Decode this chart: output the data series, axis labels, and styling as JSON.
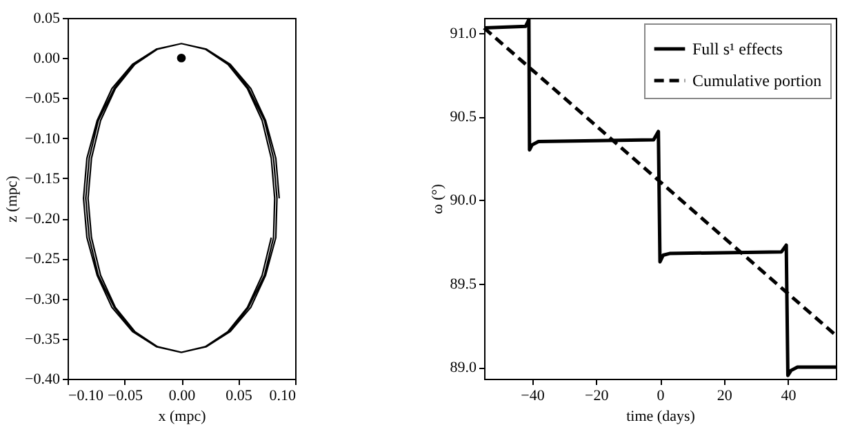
{
  "chart_data": [
    {
      "type": "line",
      "xlabel": "x (mpc)",
      "ylabel": "z (mpc)",
      "xlim": [
        -0.1,
        0.1
      ],
      "ylim": [
        -0.4,
        0.05
      ],
      "xticks": [
        {
          "value": -0.1,
          "label": "−0.10"
        },
        {
          "value": -0.05,
          "label": "−0.05"
        },
        {
          "value": 0,
          "label": "0.00"
        },
        {
          "value": 0.05,
          "label": "0.05"
        },
        {
          "value": 0.1,
          "label": "0.10"
        }
      ],
      "yticks": [
        {
          "value": -0.4,
          "label": "−0.40"
        },
        {
          "value": -0.35,
          "label": "−0.35"
        },
        {
          "value": -0.3,
          "label": "−0.30"
        },
        {
          "value": -0.25,
          "label": "−0.25"
        },
        {
          "value": -0.2,
          "label": "−0.20"
        },
        {
          "value": -0.15,
          "label": "−0.15"
        },
        {
          "value": -0.1,
          "label": "−0.10"
        },
        {
          "value": -0.05,
          "label": "−0.05"
        },
        {
          "value": 0,
          "label": "0.00"
        },
        {
          "value": 0.05,
          "label": "0.05"
        }
      ],
      "grid": false,
      "legend": false,
      "series": [
        {
          "color": "#000000",
          "x": [
            0.086,
            0.083,
            0.074,
            0.061,
            0.043,
            0.022,
            0,
            -0.022,
            -0.043,
            -0.061,
            -0.074,
            -0.083,
            -0.086,
            -0.083,
            -0.074,
            -0.061,
            -0.043,
            -0.022,
            0,
            0.022,
            0.043,
            0.061,
            0.074,
            0.083,
            0.084,
            0.081,
            0.073,
            0.059,
            0.042,
            0.022,
            0,
            -0.022,
            -0.042,
            -0.059,
            -0.073,
            -0.081,
            -0.084,
            -0.081,
            -0.073,
            -0.059,
            -0.042,
            -0.022,
            0,
            0.022,
            0.042,
            0.059,
            0.073,
            0.081,
            0.082,
            0.079,
            0.071,
            0.058,
            0.041,
            0.021,
            0,
            -0.021,
            -0.041,
            -0.058,
            -0.071,
            -0.079,
            -0.082,
            -0.079,
            -0.071,
            -0.058,
            -0.041,
            -0.021,
            0,
            0.021,
            0.041,
            0.058,
            0.071,
            0.079
          ],
          "values": [
            -0.175,
            -0.125,
            -0.078,
            -0.038,
            -0.008,
            0.011,
            0.018,
            0.011,
            -0.008,
            -0.038,
            -0.078,
            -0.125,
            -0.175,
            -0.224,
            -0.271,
            -0.311,
            -0.341,
            -0.36,
            -0.367,
            -0.36,
            -0.341,
            -0.311,
            -0.271,
            -0.224,
            -0.175,
            -0.125,
            -0.078,
            -0.038,
            -0.008,
            0.011,
            0.018,
            0.011,
            -0.008,
            -0.038,
            -0.078,
            -0.125,
            -0.175,
            -0.224,
            -0.271,
            -0.311,
            -0.341,
            -0.36,
            -0.367,
            -0.36,
            -0.341,
            -0.311,
            -0.271,
            -0.224,
            -0.175,
            -0.125,
            -0.078,
            -0.038,
            -0.008,
            0.011,
            0.018,
            0.011,
            -0.008,
            -0.038,
            -0.078,
            -0.125,
            -0.175,
            -0.224,
            -0.271,
            -0.311,
            -0.341,
            -0.36,
            -0.367,
            -0.36,
            -0.341,
            -0.311,
            -0.271,
            -0.224
          ]
        },
        {
          "type": "scatter",
          "marker": "circle",
          "color": "#000000",
          "x": [
            0
          ],
          "values": [
            0
          ]
        }
      ]
    },
    {
      "type": "line",
      "xlabel": "time (days)",
      "ylabel": "ω (°)",
      "xlim": [
        -55,
        55
      ],
      "ylim": [
        88.93,
        91.09
      ],
      "xticks": [
        {
          "value": -40,
          "label": "−40"
        },
        {
          "value": -20,
          "label": "−20"
        },
        0,
        20,
        40
      ],
      "yticks": [
        {
          "value": 89,
          "label": "89.0"
        },
        89.5,
        {
          "value": 90,
          "label": "90.0"
        },
        90.5,
        {
          "value": 91,
          "label": "91.0"
        }
      ],
      "grid": false,
      "legend": "top right",
      "series": [
        {
          "name": "Full s¹ effects",
          "color": "#000000",
          "line_style": "solid",
          "x": [
            -55,
            -42,
            -41,
            -40.8,
            -40,
            -38,
            -2,
            -0.5,
            0,
            1,
            3,
            38,
            39.5,
            40,
            41,
            43,
            55
          ],
          "values": [
            91.03,
            91.04,
            91.08,
            90.3,
            90.33,
            90.35,
            90.36,
            90.41,
            89.63,
            89.67,
            89.68,
            89.69,
            89.73,
            88.95,
            88.98,
            89.0,
            89.0
          ]
        },
        {
          "name": "Cumulative portion",
          "color": "#000000",
          "line_style": "dashed",
          "x": [
            -55,
            55
          ],
          "values": [
            91.03,
            89.19
          ]
        }
      ]
    }
  ]
}
